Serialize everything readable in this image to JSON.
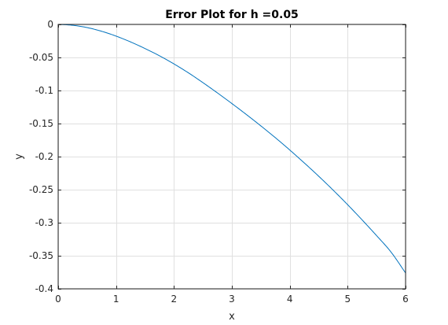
{
  "colors": {
    "background": "#ffffff",
    "axes_frame": "#262626",
    "grid": "#e0e0e0",
    "line": "#0072bd",
    "text": "#262626",
    "title": "#000000"
  },
  "chart_data": {
    "type": "line",
    "title": "Error Plot for h =0.05",
    "xlabel": "x",
    "ylabel": "y",
    "xlim": [
      0,
      6
    ],
    "ylim": [
      -0.4,
      0
    ],
    "xticks": [
      0,
      1,
      2,
      3,
      4,
      5,
      6
    ],
    "xtick_labels": [
      "0",
      "1",
      "2",
      "3",
      "4",
      "5",
      "6"
    ],
    "yticks": [
      0,
      -0.05,
      -0.1,
      -0.15,
      -0.2,
      -0.25,
      -0.3,
      -0.35,
      -0.4
    ],
    "ytick_labels": [
      "0",
      "-0.05",
      "-0.1",
      "-0.15",
      "-0.2",
      "-0.25",
      "-0.3",
      "-0.35",
      "-0.4"
    ],
    "grid": true,
    "legend": "none",
    "series": [
      {
        "x": [
          0,
          0.25,
          0.5,
          0.75,
          1,
          1.25,
          1.5,
          1.75,
          2,
          2.25,
          2.5,
          2.75,
          3,
          3.25,
          3.5,
          3.75,
          4,
          4.25,
          4.5,
          4.75,
          5,
          5.25,
          5.5,
          5.75,
          6
        ],
        "y": [
          0,
          -0.0013,
          -0.0048,
          -0.0104,
          -0.0177,
          -0.0265,
          -0.0365,
          -0.0475,
          -0.0598,
          -0.0733,
          -0.0881,
          -0.1036,
          -0.1197,
          -0.1363,
          -0.1535,
          -0.1713,
          -0.19,
          -0.2095,
          -0.2297,
          -0.2508,
          -0.2728,
          -0.2958,
          -0.3196,
          -0.3445,
          -0.376
        ]
      }
    ]
  }
}
